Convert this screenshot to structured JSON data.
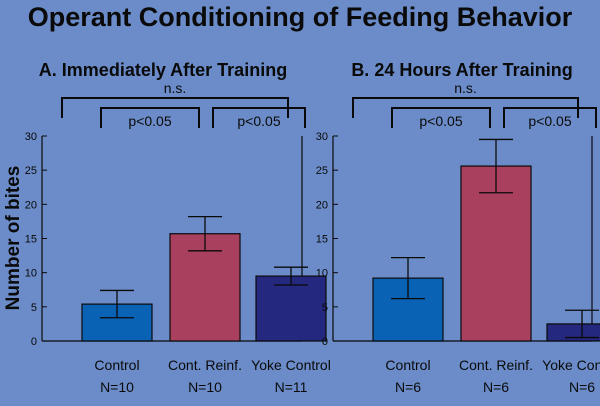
{
  "title": "Operant Conditioning of Feeding Behavior",
  "ylabel": "Number of bites",
  "colors": {
    "background": "#6b8cc8",
    "Control": "#0a62b4",
    "Cont. Reinf.": "#a8405e",
    "Yoke Control": "#24287e"
  },
  "chart_data": [
    {
      "type": "bar",
      "title": "A. Immediately After Training",
      "categories": [
        "Control",
        "Cont. Reinf.",
        "Yoke Control"
      ],
      "n_labels": [
        "N=10",
        "N=10",
        "N=11"
      ],
      "values": [
        5.4,
        15.7,
        9.5
      ],
      "error": [
        2.0,
        2.5,
        1.3
      ],
      "ylim": [
        0,
        30
      ],
      "yticks": [
        0,
        5,
        10,
        15,
        20,
        25,
        30
      ],
      "ylabel": "Number of bites",
      "annotations": [
        {
          "text": "p<0.05",
          "from": 0,
          "to": 1
        },
        {
          "text": "p<0.05",
          "from": 1,
          "to": 2
        },
        {
          "text": "n.s.",
          "from": 0,
          "to": 2
        }
      ]
    },
    {
      "type": "bar",
      "title": "B. 24 Hours After Training",
      "categories": [
        "Control",
        "Cont. Reinf.",
        "Yoke Control"
      ],
      "n_labels": [
        "N=6",
        "N=6",
        "N=6"
      ],
      "values": [
        9.2,
        25.6,
        2.5
      ],
      "error": [
        3.0,
        3.9,
        2.0
      ],
      "ylim": [
        0,
        30
      ],
      "yticks": [
        0,
        5,
        10,
        15,
        20,
        25,
        30
      ],
      "annotations": [
        {
          "text": "p<0.05",
          "from": 0,
          "to": 1
        },
        {
          "text": "p<0.05",
          "from": 1,
          "to": 2
        },
        {
          "text": "n.s.",
          "from": 0,
          "to": 2
        }
      ]
    }
  ]
}
